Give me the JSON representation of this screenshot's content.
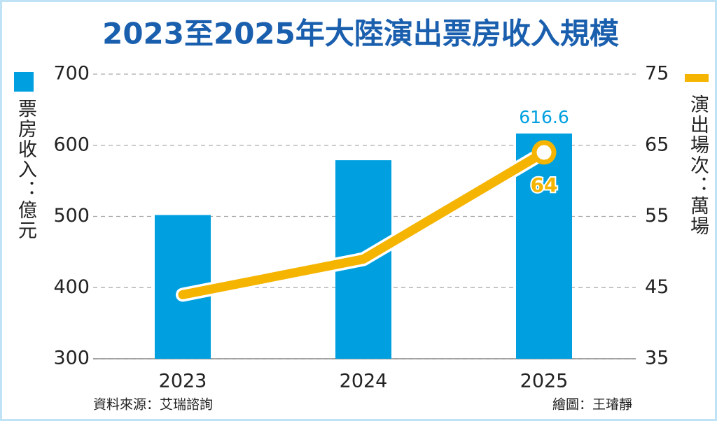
{
  "chart_data": {
    "type": "bar",
    "title": "2023至2025年大陸演出票房收入規模",
    "categories": [
      "2023",
      "2024",
      "2025"
    ],
    "series": [
      {
        "name": "票房收入：億元",
        "type": "bar",
        "color": "#00a0e0",
        "values": [
          502,
          579,
          616.6
        ]
      },
      {
        "name": "演出場次：萬場",
        "type": "line",
        "color": "#f5b400",
        "axis": "y2",
        "values": [
          44,
          49,
          64
        ]
      }
    ],
    "ylim": [
      300,
      700
    ],
    "yticks": [
      300,
      400,
      500,
      600,
      700
    ],
    "y2lim": [
      35,
      75
    ],
    "y2ticks": [
      35,
      45,
      55,
      65,
      75
    ],
    "grid": true,
    "source": "資料來源：艾瑞諮詢",
    "credit": "繪圖：王璿靜"
  }
}
